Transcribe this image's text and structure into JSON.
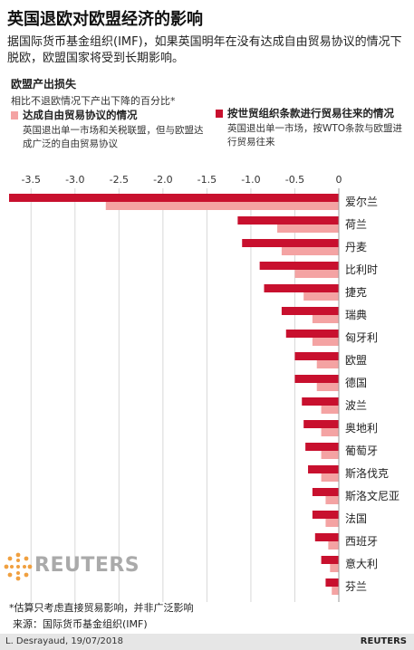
{
  "title": "英国退欧对欧盟经济的影响",
  "intro": "据国际货币基金组织(IMF)，如果英国明年在没有达成自由贸易协议的情况下脱欧，欧盟国家将受到长期影响。",
  "subhead": "欧盟产出损失",
  "note": "相比不退欧情况下产出下降的百分比*",
  "legend": [
    {
      "title": "达成自由贸易协议的情况",
      "desc": "英国退出单一市场和关税联盟，但与欧盟达成广泛的自由贸易协议",
      "color": "#f4a3a3"
    },
    {
      "title": "按世贸组织条款进行贸易往来的情况",
      "desc": "英国退出单一市场，按WTO条款与欧盟进行贸易往来",
      "color": "#c8102e"
    }
  ],
  "footnote": "*估算只考虑直接贸易影响，并非广泛影响",
  "source": "来源：国际货币基金组织(IMF)",
  "credit": "L. Desrayaud, 19/07/2018",
  "brand": "REUTERS",
  "watermark": "REUTERS",
  "chart_data": {
    "type": "bar",
    "orientation": "horizontal",
    "xlim": [
      -3.75,
      0
    ],
    "xticks": [
      -3.5,
      -3.0,
      -2.5,
      -2.0,
      -1.5,
      -1.0,
      -0.5,
      0
    ],
    "xtick_labels": [
      "-3.5",
      "-3.0",
      "-2.5",
      "-2.0",
      "-1.5",
      "-1.0",
      "-0.5",
      "0"
    ],
    "grid": true,
    "categories": [
      "爱尔兰",
      "荷兰",
      "丹麦",
      "比利时",
      "捷克",
      "瑞典",
      "匈牙利",
      "欧盟",
      "德国",
      "波兰",
      "奥地利",
      "葡萄牙",
      "斯洛伐克",
      "斯洛文尼亚",
      "法国",
      "西班牙",
      "意大利",
      "芬兰"
    ],
    "series": [
      {
        "name": "按世贸组织条款进行贸易往来的情况",
        "color": "#c8102e",
        "values": [
          -3.75,
          -1.15,
          -1.1,
          -0.9,
          -0.85,
          -0.65,
          -0.6,
          -0.5,
          -0.5,
          -0.42,
          -0.4,
          -0.38,
          -0.35,
          -0.3,
          -0.3,
          -0.27,
          -0.2,
          -0.15
        ]
      },
      {
        "name": "达成自由贸易协议的情况",
        "color": "#f4a3a3",
        "values": [
          -2.65,
          -0.7,
          -0.65,
          -0.5,
          -0.4,
          -0.3,
          -0.3,
          -0.25,
          -0.25,
          -0.2,
          -0.2,
          -0.2,
          -0.2,
          -0.15,
          -0.15,
          -0.12,
          -0.1,
          -0.08
        ]
      }
    ]
  }
}
